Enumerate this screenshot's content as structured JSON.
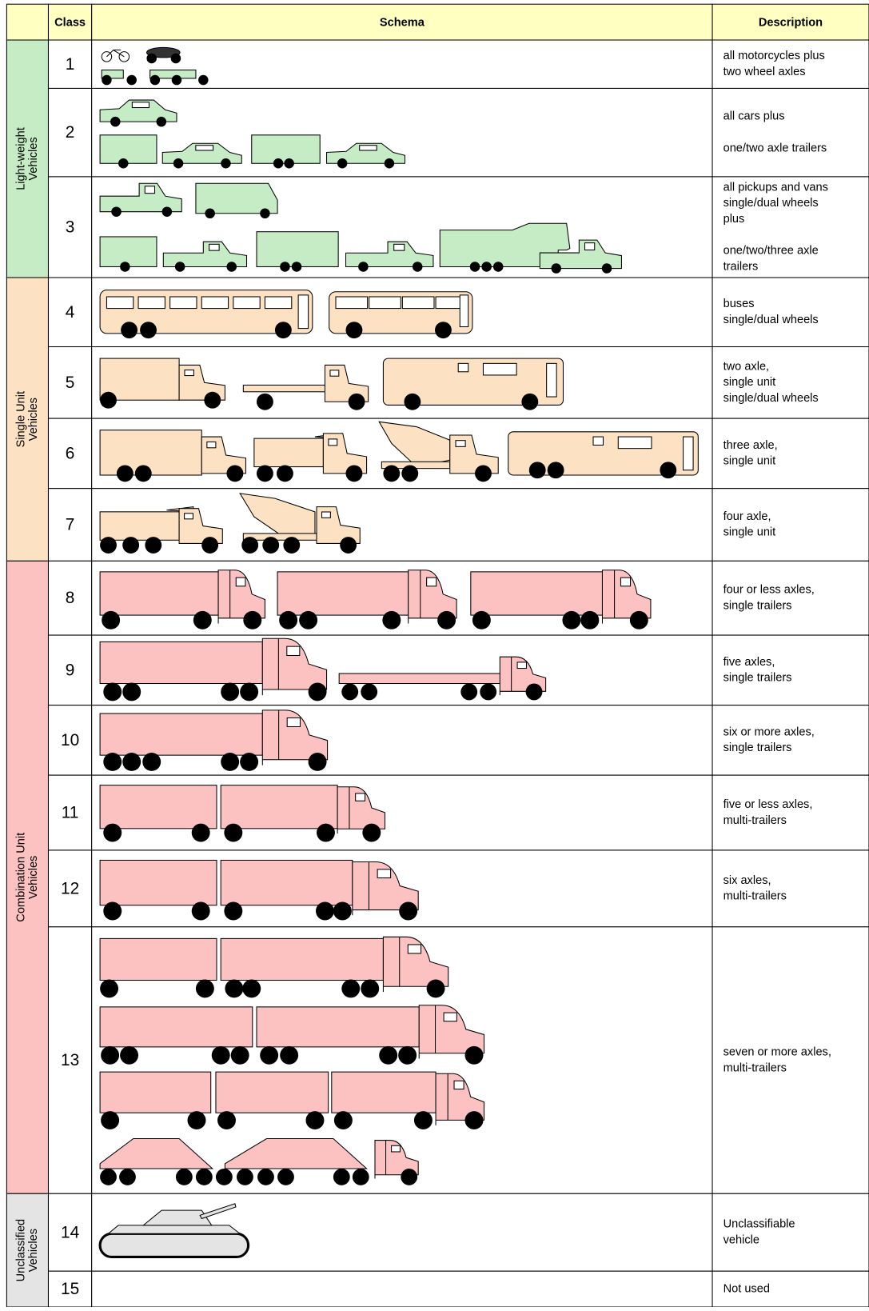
{
  "header": [
    "Class",
    "Schema",
    "Description"
  ],
  "groups": [
    {
      "label": [
        "Light-weight",
        "Vehicles"
      ],
      "rows": [
        {
          "class": 1,
          "description": [
            [
              "all motorcycles plus",
              "two wheel  axles"
            ]
          ]
        },
        {
          "class": 2,
          "description": [
            [
              "all cars plus"
            ],
            [
              "one/two axle trailers"
            ]
          ]
        },
        {
          "class": 3,
          "description": [
            [
              "all pickups and vans",
              "single/dual wheels",
              "plus"
            ],
            [
              "one/two/three axle",
              "trailers"
            ]
          ]
        }
      ]
    },
    {
      "label": [
        "Single Unit",
        "Vehicles"
      ],
      "rows": [
        {
          "class": 4,
          "description": [
            [
              "buses",
              "single/dual wheels"
            ]
          ]
        },
        {
          "class": 5,
          "description": [
            [
              "two axle,",
              "single unit",
              "single/dual wheels"
            ]
          ]
        },
        {
          "class": 6,
          "description": [
            [
              "three axle,",
              "single unit"
            ]
          ]
        },
        {
          "class": 7,
          "description": [
            [
              "four axle,",
              "single unit"
            ]
          ]
        }
      ]
    },
    {
      "label": [
        "Combination Unit",
        "Vehicles"
      ],
      "rows": [
        {
          "class": 8,
          "description": [
            [
              "four or less axles,",
              "single trailers"
            ]
          ]
        },
        {
          "class": 9,
          "description": [
            [
              "five axles,",
              "single trailers"
            ]
          ]
        },
        {
          "class": 10,
          "description": [
            [
              "six or more axles,",
              "single trailers"
            ]
          ]
        },
        {
          "class": 11,
          "description": [
            [
              "five or less axles,",
              "multi-trailers"
            ]
          ]
        },
        {
          "class": 12,
          "description": [
            [
              "six axles,",
              "multi-trailers"
            ]
          ]
        },
        {
          "class": 13,
          "description": [
            [
              "seven or more axles,",
              "multi-trailers"
            ]
          ]
        }
      ]
    },
    {
      "label": [
        "Unclassified",
        "Vehicles"
      ],
      "rows": [
        {
          "class": 14,
          "description": [
            [
              "Unclassifiable",
              "vehicle"
            ]
          ]
        },
        {
          "class": 15,
          "description": [
            [
              "Not used"
            ]
          ]
        }
      ]
    }
  ]
}
